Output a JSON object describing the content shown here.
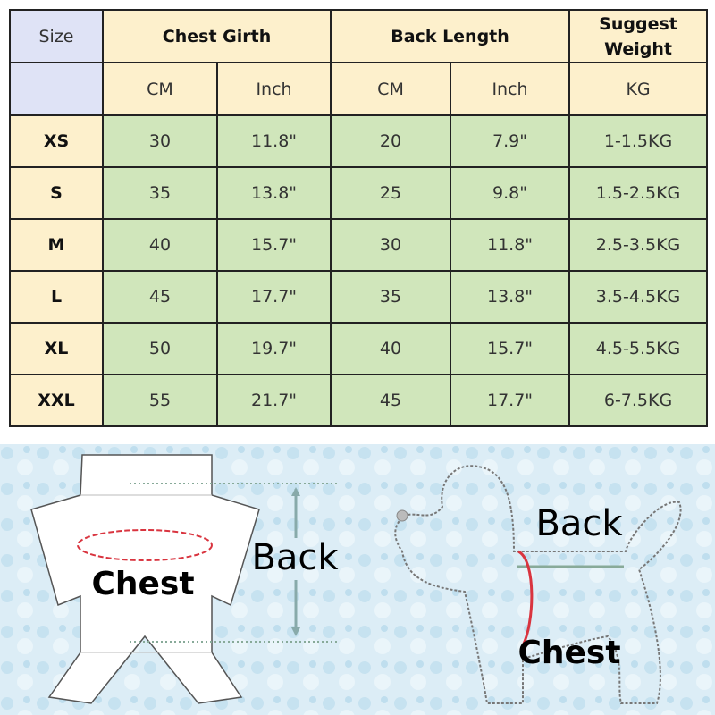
{
  "table": {
    "size_label": "Size",
    "chest_label": "Chest Girth",
    "back_label": "Back Length",
    "weight_label": "Suggest Weight",
    "units": [
      "CM",
      "Inch",
      "CM",
      "Inch",
      "KG"
    ],
    "rows": [
      {
        "size": "XS",
        "chest_cm": "30",
        "chest_in": "11.8\"",
        "back_cm": "20",
        "back_in": "7.9\"",
        "weight": "1-1.5KG"
      },
      {
        "size": "S",
        "chest_cm": "35",
        "chest_in": "13.8\"",
        "back_cm": "25",
        "back_in": "9.8\"",
        "weight": "1.5-2.5KG"
      },
      {
        "size": "M",
        "chest_cm": "40",
        "chest_in": "15.7\"",
        "back_cm": "30",
        "back_in": "11.8\"",
        "weight": "2.5-3.5KG"
      },
      {
        "size": "L",
        "chest_cm": "45",
        "chest_in": "17.7\"",
        "back_cm": "35",
        "back_in": "13.8\"",
        "weight": "3.5-4.5KG"
      },
      {
        "size": "XL",
        "chest_cm": "50",
        "chest_in": "19.7\"",
        "back_cm": "40",
        "back_in": "15.7\"",
        "weight": "4.5-5.5KG"
      },
      {
        "size": "XXL",
        "chest_cm": "55",
        "chest_in": "21.7\"",
        "back_cm": "45",
        "back_in": "17.7\"",
        "weight": "6-7.5KG"
      }
    ]
  },
  "diagram": {
    "garment_chest": "Chest",
    "garment_back": "Back",
    "dog_back": "Back",
    "dog_chest": "Chest"
  },
  "colors": {
    "header_blue": "#dfe3f6",
    "header_yellow": "#fdf0cc",
    "cell_green": "#d0e6bb",
    "chest_red": "#d9343f"
  }
}
